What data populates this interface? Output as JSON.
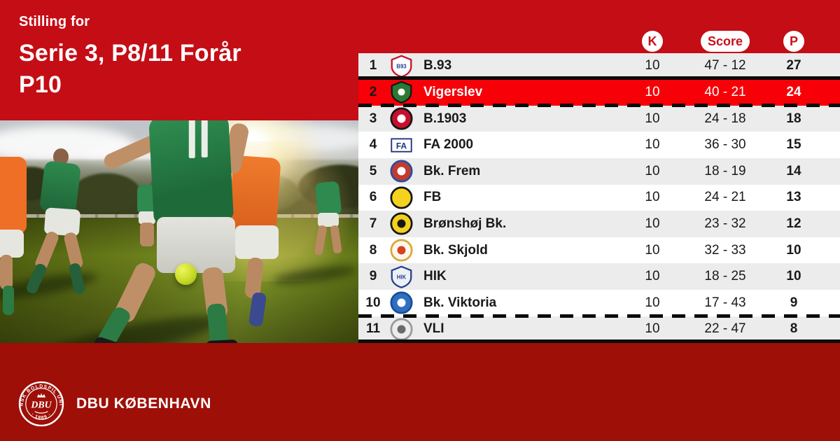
{
  "colors": {
    "bg_top": "#C40D15",
    "bg_bottom": "#9E0F08",
    "highlight": "#F70008",
    "stripe": "#ECECEC",
    "badge_text": "#C8101B"
  },
  "header": {
    "eyebrow": "Stilling for",
    "title_line1": "Serie 3, P8/11 Forår",
    "title_line2": "P10"
  },
  "photo": {
    "description": "Amateur football match photo: players in green kits and orange bibs on a sunlit pitch, low sun flare, yellow ball"
  },
  "table": {
    "columns": [
      {
        "key": "k",
        "label": "K"
      },
      {
        "key": "score",
        "label": "Score"
      },
      {
        "key": "p",
        "label": "P"
      }
    ],
    "rows": [
      {
        "pos": "1",
        "team": "B.93",
        "k": "10",
        "score": "47 - 12",
        "p": "27",
        "highlight": false,
        "logo": {
          "shape": "shield",
          "colors": [
            "#ffffff",
            "#c8102e",
            "#1d3c8f"
          ],
          "text": "B93"
        }
      },
      {
        "pos": "2",
        "team": "Vigerslev",
        "k": "10",
        "score": "40 - 21",
        "p": "24",
        "highlight": true,
        "logo": {
          "shape": "shield",
          "colors": [
            "#2a7a35",
            "#161616",
            "#ffffff"
          ]
        }
      },
      {
        "pos": "3",
        "team": "B.1903",
        "k": "10",
        "score": "24 - 18",
        "p": "18",
        "highlight": false,
        "logo": {
          "shape": "circle",
          "colors": [
            "#c8102e",
            "#161616",
            "#ffffff"
          ]
        }
      },
      {
        "pos": "4",
        "team": "FA 2000",
        "k": "10",
        "score": "36 - 30",
        "p": "15",
        "highlight": false,
        "logo": {
          "shape": "rect",
          "colors": [
            "#ffffff",
            "#1d2f7e",
            "#c8102e"
          ],
          "text": "FA"
        }
      },
      {
        "pos": "5",
        "team": "Bk. Frem",
        "k": "10",
        "score": "18 - 19",
        "p": "14",
        "highlight": false,
        "logo": {
          "shape": "circle",
          "colors": [
            "#c23b2e",
            "#2a4fa0",
            "#ffffff"
          ]
        }
      },
      {
        "pos": "6",
        "team": "FB",
        "k": "10",
        "score": "24 - 21",
        "p": "13",
        "highlight": false,
        "logo": {
          "shape": "circle",
          "colors": [
            "#f5d21d",
            "#161616",
            "#f5d21d"
          ]
        }
      },
      {
        "pos": "7",
        "team": "Brønshøj Bk.",
        "k": "10",
        "score": "23 - 32",
        "p": "12",
        "highlight": false,
        "logo": {
          "shape": "circle",
          "colors": [
            "#f3d11c",
            "#161616",
            "#161616"
          ]
        }
      },
      {
        "pos": "8",
        "team": "Bk. Skjold",
        "k": "10",
        "score": "32 - 33",
        "p": "10",
        "highlight": false,
        "logo": {
          "shape": "circle",
          "colors": [
            "#fdf6ea",
            "#d9a73c",
            "#d2431f"
          ]
        }
      },
      {
        "pos": "9",
        "team": "HIK",
        "k": "10",
        "score": "18 - 25",
        "p": "10",
        "highlight": false,
        "logo": {
          "shape": "shield",
          "colors": [
            "#edf1f7",
            "#27408b",
            "#27408b"
          ],
          "text": "HIK"
        }
      },
      {
        "pos": "10",
        "team": "Bk. Viktoria",
        "k": "10",
        "score": "17 - 43",
        "p": "9",
        "highlight": false,
        "logo": {
          "shape": "circle",
          "colors": [
            "#2e6fc2",
            "#1a4e96",
            "#ffffff"
          ]
        }
      },
      {
        "pos": "11",
        "team": "VLI",
        "k": "10",
        "score": "22 - 47",
        "p": "8",
        "highlight": false,
        "logo": {
          "shape": "circle",
          "colors": [
            "#ececec",
            "#9a9a9a",
            "#6a6a6a"
          ]
        }
      }
    ]
  },
  "footer": {
    "org": "DBU KØBENHAVN",
    "seal_ring_text": "DANSK BOLDSPIL UNION",
    "seal_year": "· 1889 ·",
    "seal_center": "DBU"
  }
}
